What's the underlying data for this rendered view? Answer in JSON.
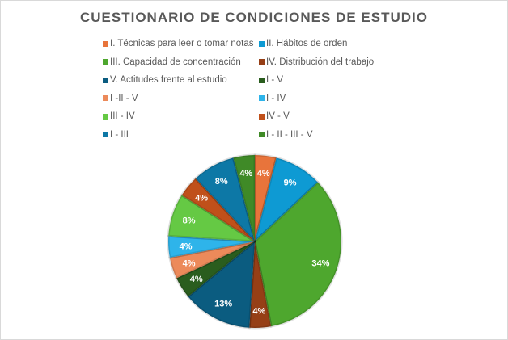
{
  "chart_data": {
    "type": "pie",
    "title": "CUESTIONARIO DE CONDICIONES DE ESTUDIO",
    "legend_position": "top",
    "categories": [
      "I. Técnicas para leer o tomar notas",
      "II. Hábitos de orden",
      "III. Capacidad de concentración",
      "IV. Distribución del trabajo",
      "V. Actitudes frente al estudio",
      "I - V",
      "I -II - V",
      "I - IV",
      "III - IV",
      "IV - V",
      "I - III",
      "I - II - III - V"
    ],
    "values": [
      4,
      9,
      34,
      4,
      13,
      4,
      4,
      4,
      8,
      4,
      8,
      4
    ],
    "data_labels": [
      "4%",
      "9%",
      "34%",
      "4%",
      "13%",
      "4%",
      "4%",
      "4%",
      "8%",
      "4%",
      "8%",
      "4%"
    ],
    "colors": [
      "#E8743B",
      "#0E9AD3",
      "#4EA72E",
      "#963F16",
      "#0B5C80",
      "#2A5D1E",
      "#EC8A5A",
      "#2EB4EA",
      "#65C944",
      "#C0501A",
      "#0D78A6",
      "#3F8A27"
    ]
  }
}
